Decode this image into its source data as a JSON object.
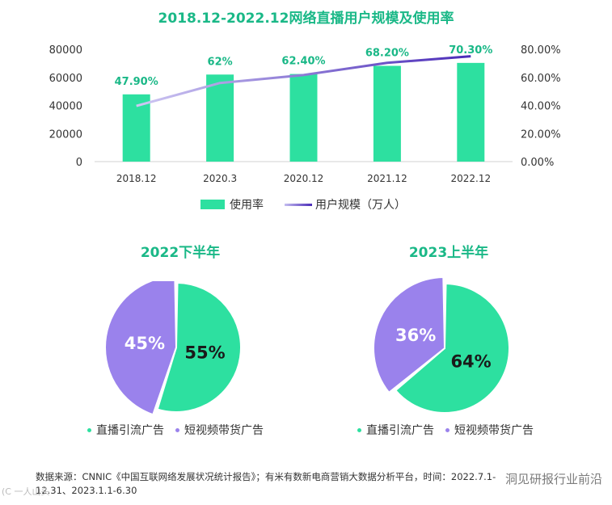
{
  "title": "2018.12-2022.12网络直播用户规模及使用率",
  "chart_data": [
    {
      "type": "bar",
      "title": "2018.12-2022.12网络直播用户规模及使用率",
      "categories": [
        "2018.12",
        "2020.3",
        "2020.12",
        "2021.12",
        "2022.12"
      ],
      "series": [
        {
          "name": "用户规模（万人）",
          "kind": "line",
          "axis": "left",
          "values": [
            39676,
            55982,
            61685,
            70337,
            75065
          ],
          "color": "#4a2bb8"
        },
        {
          "name": "使用率",
          "kind": "bar",
          "axis": "right",
          "values": [
            47.9,
            62.0,
            62.4,
            68.2,
            70.3
          ],
          "labels": [
            "47.90%",
            "62%",
            "62.40%",
            "68.20%",
            "70.30%"
          ],
          "color": "#2de0a0"
        }
      ],
      "left_axis": {
        "ticks": [
          "80000",
          "60000",
          "40000",
          "20000",
          "0"
        ],
        "ylim": [
          0,
          80000
        ]
      },
      "right_axis": {
        "ticks": [
          "80.00%",
          "60.00%",
          "40.00%",
          "20.00%",
          "0.00%"
        ],
        "ylim": [
          0,
          80
        ]
      },
      "legend": [
        "使用率",
        "用户规模（万人）"
      ]
    },
    {
      "type": "pie",
      "title": "2022下半年",
      "slices": [
        {
          "name": "直播引流广告",
          "value": 55,
          "label": "55%",
          "color": "#2de0a0"
        },
        {
          "name": "短视频带货广告",
          "value": 45,
          "label": "45%",
          "color": "#9a82ec"
        }
      ]
    },
    {
      "type": "pie",
      "title": "2023上半年",
      "slices": [
        {
          "name": "直播引流广告",
          "value": 64,
          "label": "64%",
          "color": "#2de0a0"
        },
        {
          "name": "短视频带货广告",
          "value": 36,
          "label": "36%",
          "color": "#9a82ec"
        }
      ]
    }
  ],
  "footer": {
    "line1": "数据来源：CNNIC《中国互联网络发展状况统计报告》；有米有数新电商营销大数据分析平台，时间：2022.7.1-",
    "line2": "12.31、2023.1.1-6.30"
  },
  "watermark": "洞见研报行业前沿",
  "watermark_left": "(C  一人山头"
}
